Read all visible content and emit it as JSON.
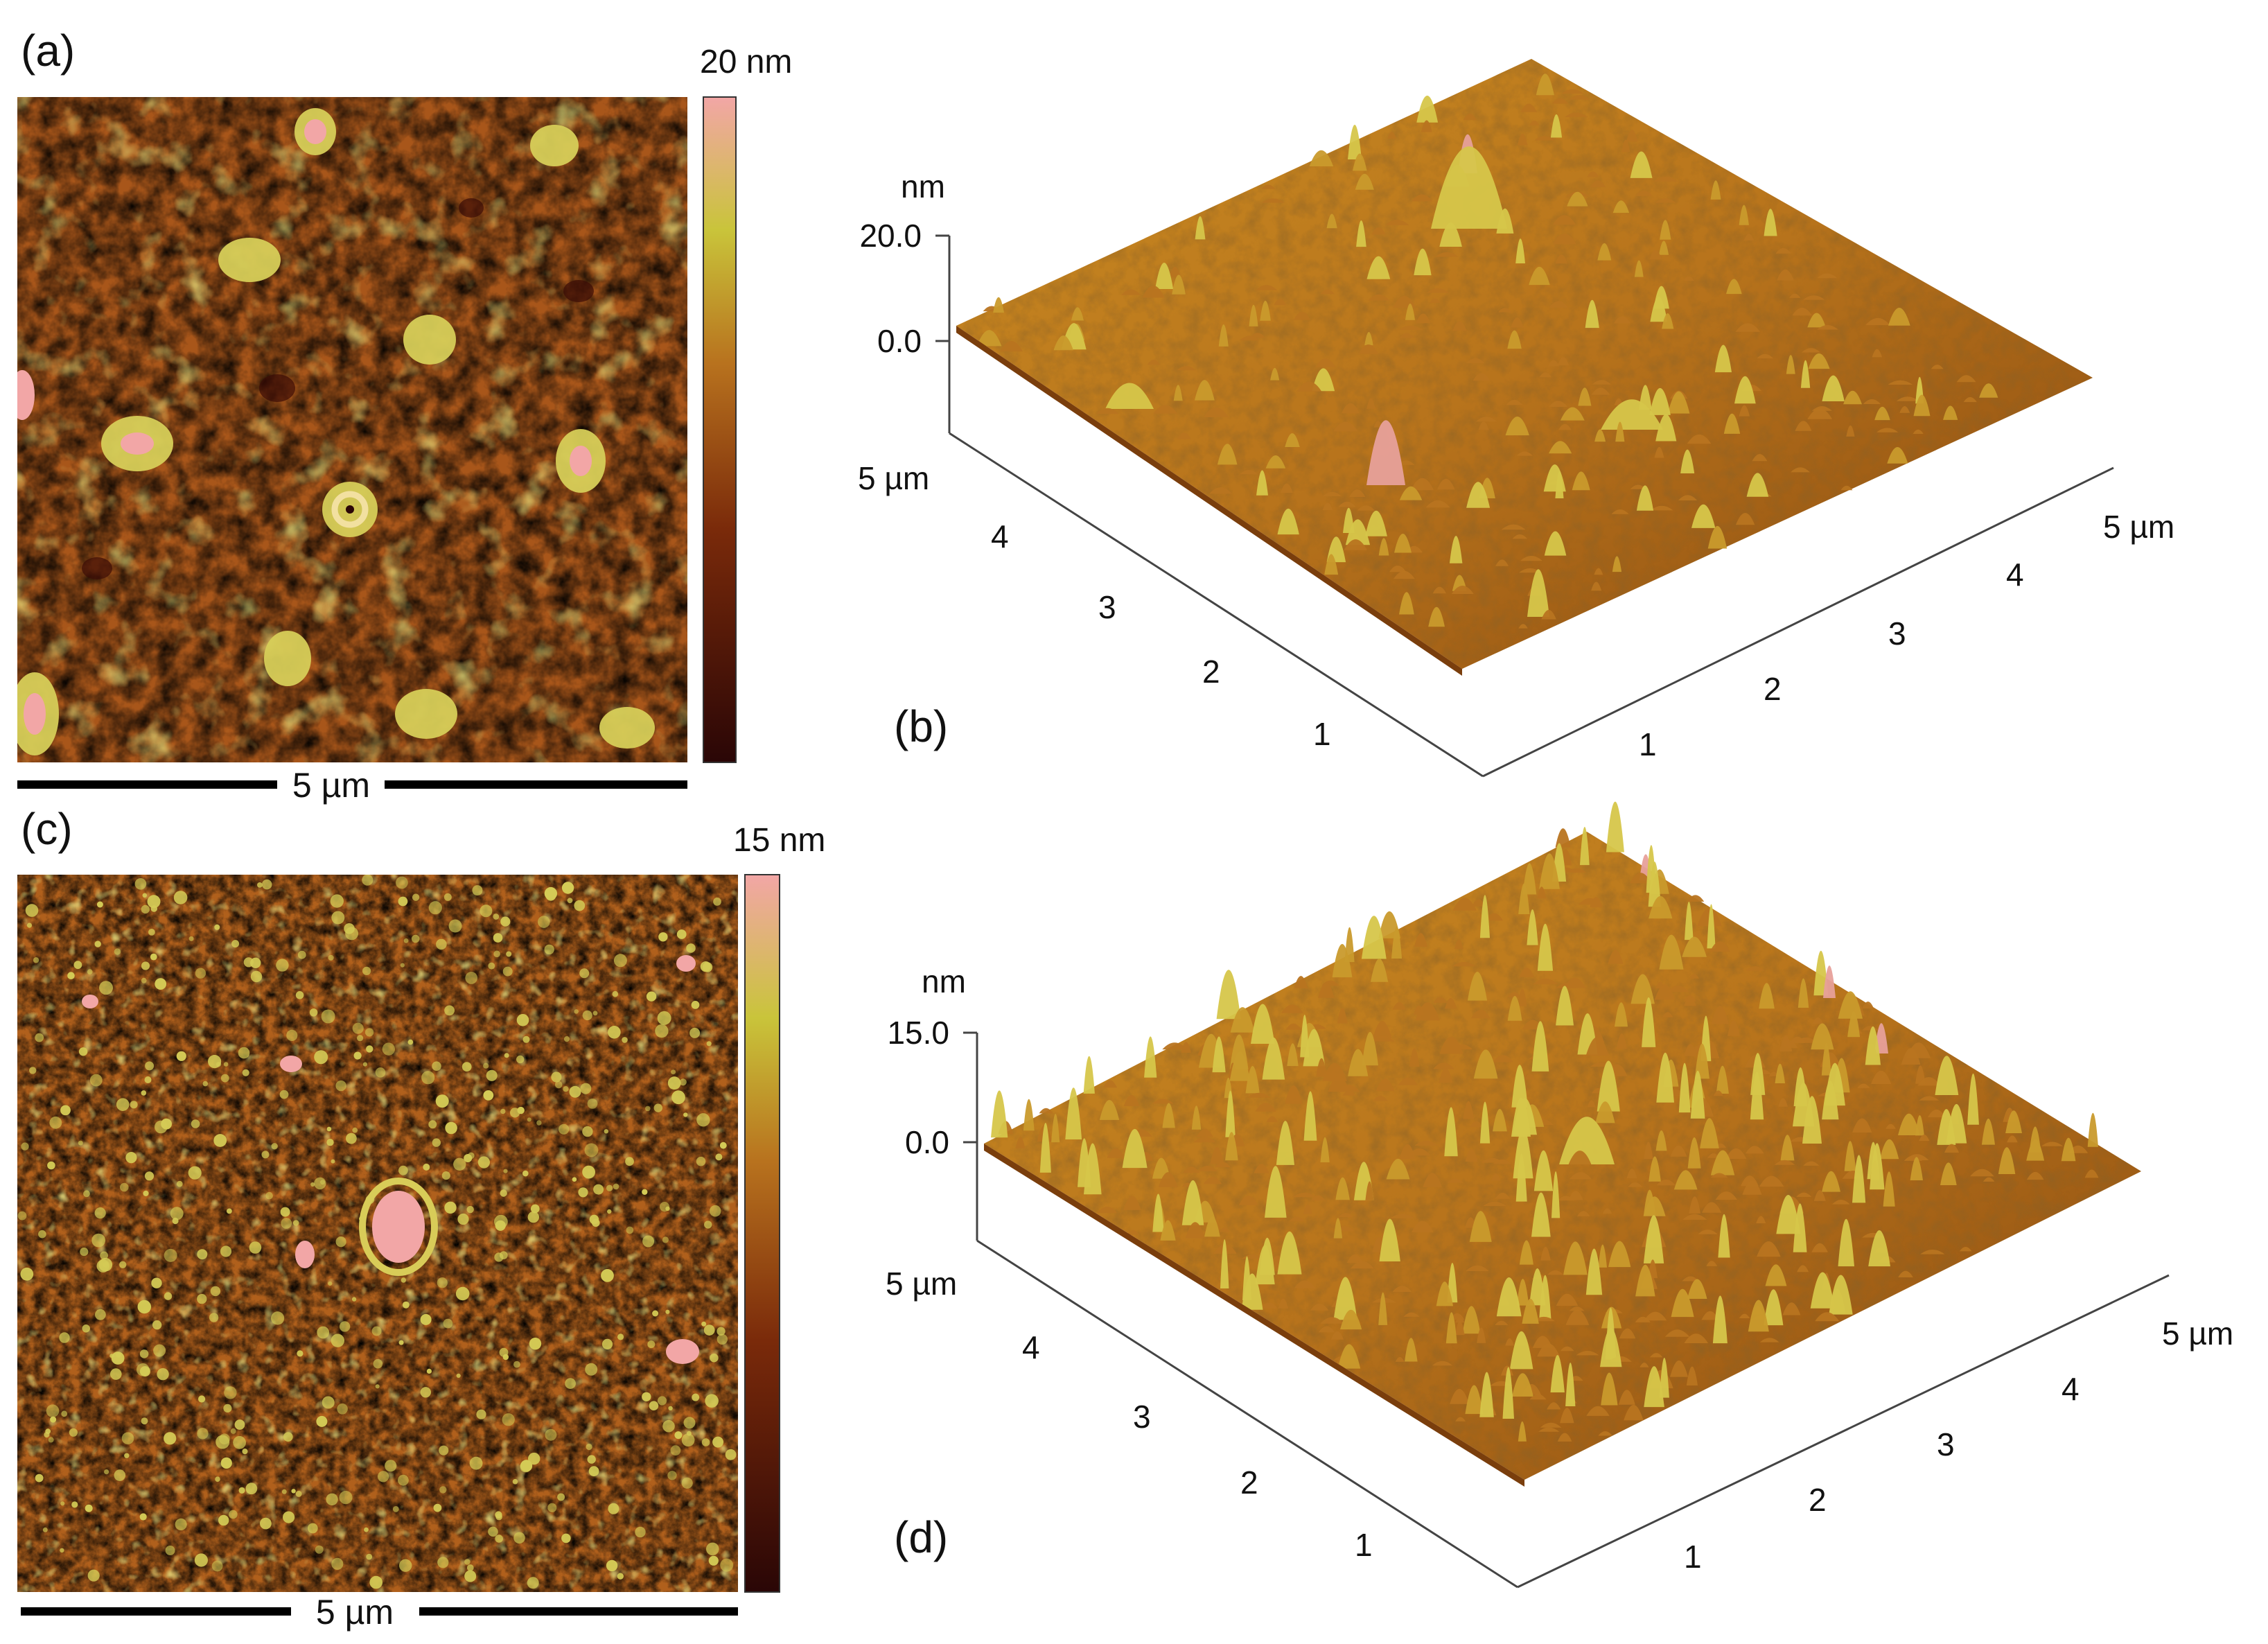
{
  "figure": {
    "panels": [
      {
        "id": "a",
        "label": "(a)",
        "view": "2d",
        "colorbar_max": "20 nm",
        "scale_bar": "5 µm",
        "colors": {
          "low": "#2a0606",
          "mid": "#a8561a",
          "high": "#c9c43a",
          "top": "#f2a6a6"
        }
      },
      {
        "id": "b",
        "label": "(b)",
        "view": "3d",
        "z_unit": "nm",
        "z_ticks": [
          "20.0",
          "0.0"
        ],
        "left_axis_end": "5 µm",
        "left_axis_ticks": [
          "4",
          "3",
          "2",
          "1"
        ],
        "right_axis_end": "5 µm",
        "right_axis_ticks": [
          "4",
          "3",
          "2",
          "1"
        ]
      },
      {
        "id": "c",
        "label": "(c)",
        "view": "2d",
        "colorbar_max": "15 nm",
        "scale_bar": "5 µm",
        "colors": {
          "low": "#2a0606",
          "mid": "#b0601c",
          "high": "#c9c43a",
          "top": "#f2a6a6"
        }
      },
      {
        "id": "d",
        "label": "(d)",
        "view": "3d",
        "z_unit": "nm",
        "z_ticks": [
          "15.0",
          "0.0"
        ],
        "left_axis_end": "5 µm",
        "left_axis_ticks": [
          "4",
          "3",
          "2",
          "1"
        ],
        "right_axis_end": "5 µm",
        "right_axis_ticks": [
          "4",
          "3",
          "2",
          "1"
        ]
      }
    ]
  }
}
